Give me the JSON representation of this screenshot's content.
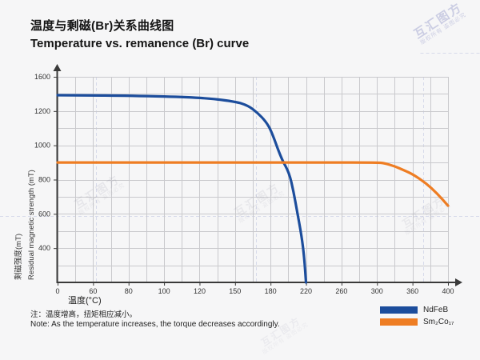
{
  "title": {
    "zh": "温度与剩磁(Br)关系曲线图",
    "en": "Temperature vs. remanence (Br) curve"
  },
  "note": {
    "zh": "注：温度增高，扭矩相应减小。",
    "en": "Note: As the temperature increases, the torque decreases accordingly."
  },
  "watermark": {
    "brand": "互汇图方",
    "rights": "版权所有",
    "warning": "盗图必究"
  },
  "chart_data": {
    "type": "line",
    "xlabel": "温度(°C)",
    "ylabel_zh": "剩磁强度(mT)",
    "ylabel_en": "Residual magnetic strength (mT)",
    "axis_scale": "category-ticks-evenly-spaced",
    "grid": true,
    "legend_position": "bottom-right",
    "x_ticks": [
      0,
      60,
      80,
      100,
      120,
      150,
      180,
      220,
      260,
      300,
      360,
      400
    ],
    "y_tick_labels": [
      1600,
      1200,
      1000,
      800,
      600,
      400
    ],
    "y_gridline_values": [
      1600,
      1400,
      1200,
      1100,
      1000,
      900,
      800,
      700,
      600,
      500,
      400,
      200,
      0
    ],
    "xlim_px_note": "x axis arrow extends past last tick",
    "series": [
      {
        "name": "NdFeB",
        "color": "#1c4d9c",
        "points": [
          [
            0,
            1385
          ],
          [
            40,
            1383
          ],
          [
            80,
            1380
          ],
          [
            120,
            1360
          ],
          [
            150,
            1312
          ],
          [
            161,
            1264
          ],
          [
            169,
            1190
          ],
          [
            176,
            1139
          ],
          [
            181,
            1083
          ],
          [
            192,
            924
          ],
          [
            201,
            840
          ],
          [
            206,
            728
          ],
          [
            210,
            611
          ],
          [
            215,
            471
          ],
          [
            218,
            290
          ],
          [
            220,
            0
          ]
        ]
      },
      {
        "name": "Sm₂Co₁₇",
        "color": "#ee7d23",
        "points": [
          [
            0,
            900
          ],
          [
            80,
            900
          ],
          [
            160,
            900
          ],
          [
            240,
            900
          ],
          [
            300,
            900
          ],
          [
            312,
            896
          ],
          [
            330,
            878
          ],
          [
            345,
            855
          ],
          [
            360,
            832
          ],
          [
            375,
            780
          ],
          [
            388,
            718
          ],
          [
            400,
            648
          ]
        ]
      }
    ]
  }
}
